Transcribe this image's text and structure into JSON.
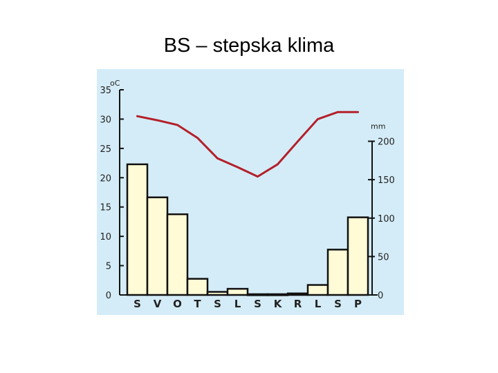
{
  "page": {
    "title": "BS – stepska klima"
  },
  "chart_data": {
    "type": "bar",
    "categories": [
      "S",
      "V",
      "O",
      "T",
      "S",
      "L",
      "S",
      "K",
      "R",
      "L",
      "S",
      "P"
    ],
    "series": [
      {
        "kind": "bar",
        "axis": "right",
        "values": [
          170,
          127,
          105,
          21,
          4,
          8,
          1,
          1,
          2,
          13,
          59,
          101
        ]
      },
      {
        "kind": "line",
        "axis": "left",
        "values": [
          30.5,
          29.8,
          29.0,
          26.8,
          23.3,
          21.8,
          20.2,
          22.3,
          26.2,
          30.0,
          31.2,
          31.2
        ]
      }
    ],
    "y_left": {
      "unit": "oC",
      "ticks": [
        0,
        5,
        10,
        15,
        20,
        25,
        30,
        35
      ],
      "range": [
        0,
        35
      ]
    },
    "y_right": {
      "unit": "mm",
      "ticks": [
        0,
        50,
        100,
        150,
        200
      ],
      "range": [
        0,
        200
      ]
    },
    "colors": {
      "background": "#d4ecf7",
      "bar_fill": "#fefbd6",
      "bar_stroke": "#111111",
      "line": "#b3202a"
    },
    "grid": false
  }
}
